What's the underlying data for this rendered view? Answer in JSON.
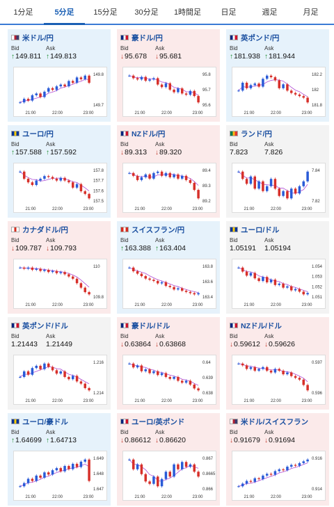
{
  "tabs": [
    {
      "label": "1分足",
      "active": false
    },
    {
      "label": "5分足",
      "active": true
    },
    {
      "label": "15分足",
      "active": false
    },
    {
      "label": "30分足",
      "active": false
    },
    {
      "label": "1時間足",
      "active": false
    },
    {
      "label": "日足",
      "active": false
    },
    {
      "label": "週足",
      "active": false
    },
    {
      "label": "月足",
      "active": false
    }
  ],
  "colors": {
    "up_candle": "#2a5bd7",
    "down_candle": "#d7302a",
    "ma": "#b04cd6",
    "up_bg": "#e6f2fb",
    "down_bg": "#fbeaea"
  },
  "labels": {
    "bid": "Bid",
    "ask": "Ask"
  },
  "pairs": [
    {
      "name": "米ドル/円",
      "trend": "up",
      "bid": "149.811",
      "ask": "149.813",
      "bid_dir": "up",
      "ask_dir": "up",
      "yticks": [
        "149.8",
        "149.7"
      ],
      "xticks": [
        "21:00",
        "22:00",
        "23:00"
      ],
      "flag": "us",
      "series": [
        149.7,
        149.72,
        149.71,
        149.74,
        149.75,
        149.73,
        149.76,
        149.78,
        149.77,
        149.79,
        149.8,
        149.79,
        149.82,
        149.81,
        149.84,
        149.83,
        149.85,
        149.81
      ]
    },
    {
      "name": "豪ドル/円",
      "trend": "down",
      "bid": "95.678",
      "ask": "95.681",
      "bid_dir": "down",
      "ask_dir": "down",
      "yticks": [
        "95.8",
        "95.7",
        "95.6"
      ],
      "xticks": [
        "21:00",
        "22:00",
        "23:00"
      ],
      "flag": "au",
      "series": [
        95.81,
        95.79,
        95.78,
        95.8,
        95.77,
        95.78,
        95.79,
        95.74,
        95.72,
        95.75,
        95.7,
        95.68,
        95.71,
        95.67,
        95.66,
        95.69,
        95.65,
        95.6
      ]
    },
    {
      "name": "英ポンド/円",
      "trend": "up",
      "bid": "181.938",
      "ask": "181.944",
      "bid_dir": "up",
      "ask_dir": "up",
      "yticks": [
        "182.2",
        "182",
        "181.8"
      ],
      "xticks": [
        "21:00",
        "22:00",
        "23:00"
      ],
      "flag": "uk",
      "series": [
        181.95,
        182.05,
        181.98,
        182.02,
        182.04,
        182.0,
        182.1,
        182.14,
        182.12,
        182.08,
        181.98,
        182.03,
        181.95,
        181.92,
        181.9,
        181.88,
        181.86,
        181.8
      ]
    },
    {
      "name": "ユーロ/円",
      "trend": "up",
      "bid": "157.588",
      "ask": "157.592",
      "bid_dir": "up",
      "ask_dir": "up",
      "yticks": [
        "157.8",
        "157.7",
        "157.6",
        "157.5"
      ],
      "xticks": [
        "21:00",
        "22:00",
        "23:00"
      ],
      "flag": "eu",
      "series": [
        157.8,
        157.72,
        157.68,
        157.65,
        157.7,
        157.72,
        157.75,
        157.74,
        157.72,
        157.7,
        157.73,
        157.7,
        157.68,
        157.62,
        157.66,
        157.58,
        157.55,
        157.5
      ]
    },
    {
      "name": "NZドル/円",
      "trend": "down",
      "bid": "89.313",
      "ask": "89.320",
      "bid_dir": "down",
      "ask_dir": "down",
      "yticks": [
        "89.4",
        "89.3",
        "89.2"
      ],
      "xticks": [
        "21:00",
        "22:00",
        "23:00"
      ],
      "flag": "nz",
      "series": [
        89.4,
        89.38,
        89.35,
        89.37,
        89.39,
        89.36,
        89.4,
        89.41,
        89.38,
        89.4,
        89.37,
        89.39,
        89.36,
        89.38,
        89.35,
        89.33,
        89.28,
        89.22
      ]
    },
    {
      "name": "ランド/円",
      "trend": "flat",
      "bid": "7.823",
      "ask": "7.826",
      "bid_dir": "none",
      "ask_dir": "none",
      "yticks": [
        "7.84",
        "7.82"
      ],
      "xticks": [
        "21:00",
        "22:00",
        "23:00"
      ],
      "flag": "za",
      "series": [
        7.825,
        7.822,
        7.82,
        7.823,
        7.818,
        7.821,
        7.817,
        7.819,
        7.822,
        7.818,
        7.815,
        7.817,
        7.814,
        7.818,
        7.816,
        7.819,
        7.821,
        7.825
      ]
    },
    {
      "name": "カナダドル/円",
      "trend": "down",
      "bid": "109.787",
      "ask": "109.793",
      "bid_dir": "down",
      "ask_dir": "down",
      "yticks": [
        "110",
        "109.8"
      ],
      "xticks": [
        "21:00",
        "22:00",
        "23:00"
      ],
      "flag": "ca",
      "series": [
        110.0,
        109.99,
        110.0,
        109.98,
        109.99,
        109.97,
        109.98,
        109.96,
        109.97,
        109.95,
        109.96,
        109.94,
        109.92,
        109.9,
        109.86,
        109.82,
        109.78,
        109.76
      ]
    },
    {
      "name": "スイスフラン/円",
      "trend": "up",
      "bid": "163.388",
      "ask": "163.404",
      "bid_dir": "up",
      "ask_dir": "up",
      "yticks": [
        "163.8",
        "163.6",
        "163.4"
      ],
      "xticks": [
        "21:00",
        "22:00",
        "23:00"
      ],
      "flag": "ch",
      "series": [
        163.82,
        163.76,
        163.72,
        163.68,
        163.64,
        163.62,
        163.6,
        163.56,
        163.58,
        163.52,
        163.5,
        163.46,
        163.48,
        163.44,
        163.42,
        163.4,
        163.38,
        163.4
      ]
    },
    {
      "name": "ユーロ/ドル",
      "trend": "flat",
      "bid": "1.05191",
      "ask": "1.05194",
      "bid_dir": "none",
      "ask_dir": "none",
      "yticks": [
        "1.054",
        "1.053",
        "1.052",
        "1.051"
      ],
      "xticks": [
        "21:00",
        "22:00",
        "23:00"
      ],
      "flag": "eu",
      "series": [
        1.0538,
        1.0535,
        1.0532,
        1.0534,
        1.053,
        1.0528,
        1.0531,
        1.0527,
        1.0529,
        1.0525,
        1.0526,
        1.0523,
        1.0524,
        1.0521,
        1.0522,
        1.052,
        1.0518,
        1.0519
      ]
    },
    {
      "name": "英ポンド/ドル",
      "trend": "flat",
      "bid": "1.21443",
      "ask": "1.21449",
      "bid_dir": "none",
      "ask_dir": "none",
      "yticks": [
        "1.216",
        "1.214"
      ],
      "xticks": [
        "21:00",
        "22:00",
        "23:00"
      ],
      "flag": "uk",
      "series": [
        1.215,
        1.2155,
        1.2152,
        1.2158,
        1.216,
        1.2157,
        1.2162,
        1.2159,
        1.2156,
        1.2153,
        1.2155,
        1.215,
        1.2148,
        1.2151,
        1.2146,
        1.2144,
        1.214,
        1.2138
      ]
    },
    {
      "name": "豪ドル/ドル",
      "trend": "down",
      "bid": "0.63864",
      "ask": "0.63868",
      "bid_dir": "down",
      "ask_dir": "down",
      "yticks": [
        "0.64",
        "0.639",
        "0.638"
      ],
      "xticks": [
        "21:00",
        "22:00",
        "23:00"
      ],
      "flag": "au",
      "series": [
        0.6398,
        0.6396,
        0.6397,
        0.6394,
        0.6395,
        0.6393,
        0.6394,
        0.6392,
        0.6393,
        0.6391,
        0.639,
        0.6391,
        0.6389,
        0.6388,
        0.6389,
        0.6387,
        0.6385,
        0.6384
      ]
    },
    {
      "name": "NZドル/ドル",
      "trend": "down",
      "bid": "0.59612",
      "ask": "0.59626",
      "bid_dir": "down",
      "ask_dir": "down",
      "yticks": [
        "0.597",
        "0.596"
      ],
      "xticks": [
        "21:00",
        "22:00",
        "23:00"
      ],
      "flag": "nz",
      "series": [
        0.5973,
        0.5972,
        0.597,
        0.5971,
        0.5969,
        0.597,
        0.5971,
        0.5969,
        0.5968,
        0.597,
        0.5969,
        0.5967,
        0.5968,
        0.5966,
        0.5965,
        0.5964,
        0.5961,
        0.5958
      ]
    },
    {
      "name": "ユーロ/豪ドル",
      "trend": "up",
      "bid": "1.64699",
      "ask": "1.64713",
      "bid_dir": "up",
      "ask_dir": "up",
      "yticks": [
        "1.649",
        "1.648",
        "1.647"
      ],
      "xticks": [
        "21:00",
        "22:00",
        "23:00"
      ],
      "flag": "eu",
      "series": [
        1.6465,
        1.6468,
        1.6472,
        1.647,
        1.6475,
        1.6473,
        1.6478,
        1.6476,
        1.648,
        1.6482,
        1.6479,
        1.6484,
        1.6481,
        1.6486,
        1.6483,
        1.6488,
        1.649,
        1.647
      ]
    },
    {
      "name": "ユーロ/英ポンド",
      "trend": "down",
      "bid": "0.86612",
      "ask": "0.86620",
      "bid_dir": "down",
      "ask_dir": "down",
      "yticks": [
        "0.867",
        "0.8665",
        "0.866"
      ],
      "xticks": [
        "21:00",
        "22:00",
        "23:00"
      ],
      "flag": "uk",
      "series": [
        0.8668,
        0.8664,
        0.8666,
        0.8662,
        0.8659,
        0.8658,
        0.8661,
        0.8657,
        0.866,
        0.8663,
        0.8661,
        0.8666,
        0.8664,
        0.8667,
        0.8665,
        0.8666,
        0.8663,
        0.8661
      ]
    },
    {
      "name": "米ドル/スイスフラン",
      "trend": "down",
      "bid": "0.91679",
      "ask": "0.91694",
      "bid_dir": "down",
      "ask_dir": "down",
      "yticks": [
        "0.916",
        "0.914"
      ],
      "xticks": [
        "21:00",
        "22:00",
        "23:00"
      ],
      "flag": "us",
      "series": [
        0.9138,
        0.9141,
        0.9144,
        0.9143,
        0.9147,
        0.9146,
        0.915,
        0.9152,
        0.9151,
        0.9155,
        0.9157,
        0.9156,
        0.916,
        0.9162,
        0.9161,
        0.9164,
        0.9166,
        0.9168
      ]
    }
  ]
}
